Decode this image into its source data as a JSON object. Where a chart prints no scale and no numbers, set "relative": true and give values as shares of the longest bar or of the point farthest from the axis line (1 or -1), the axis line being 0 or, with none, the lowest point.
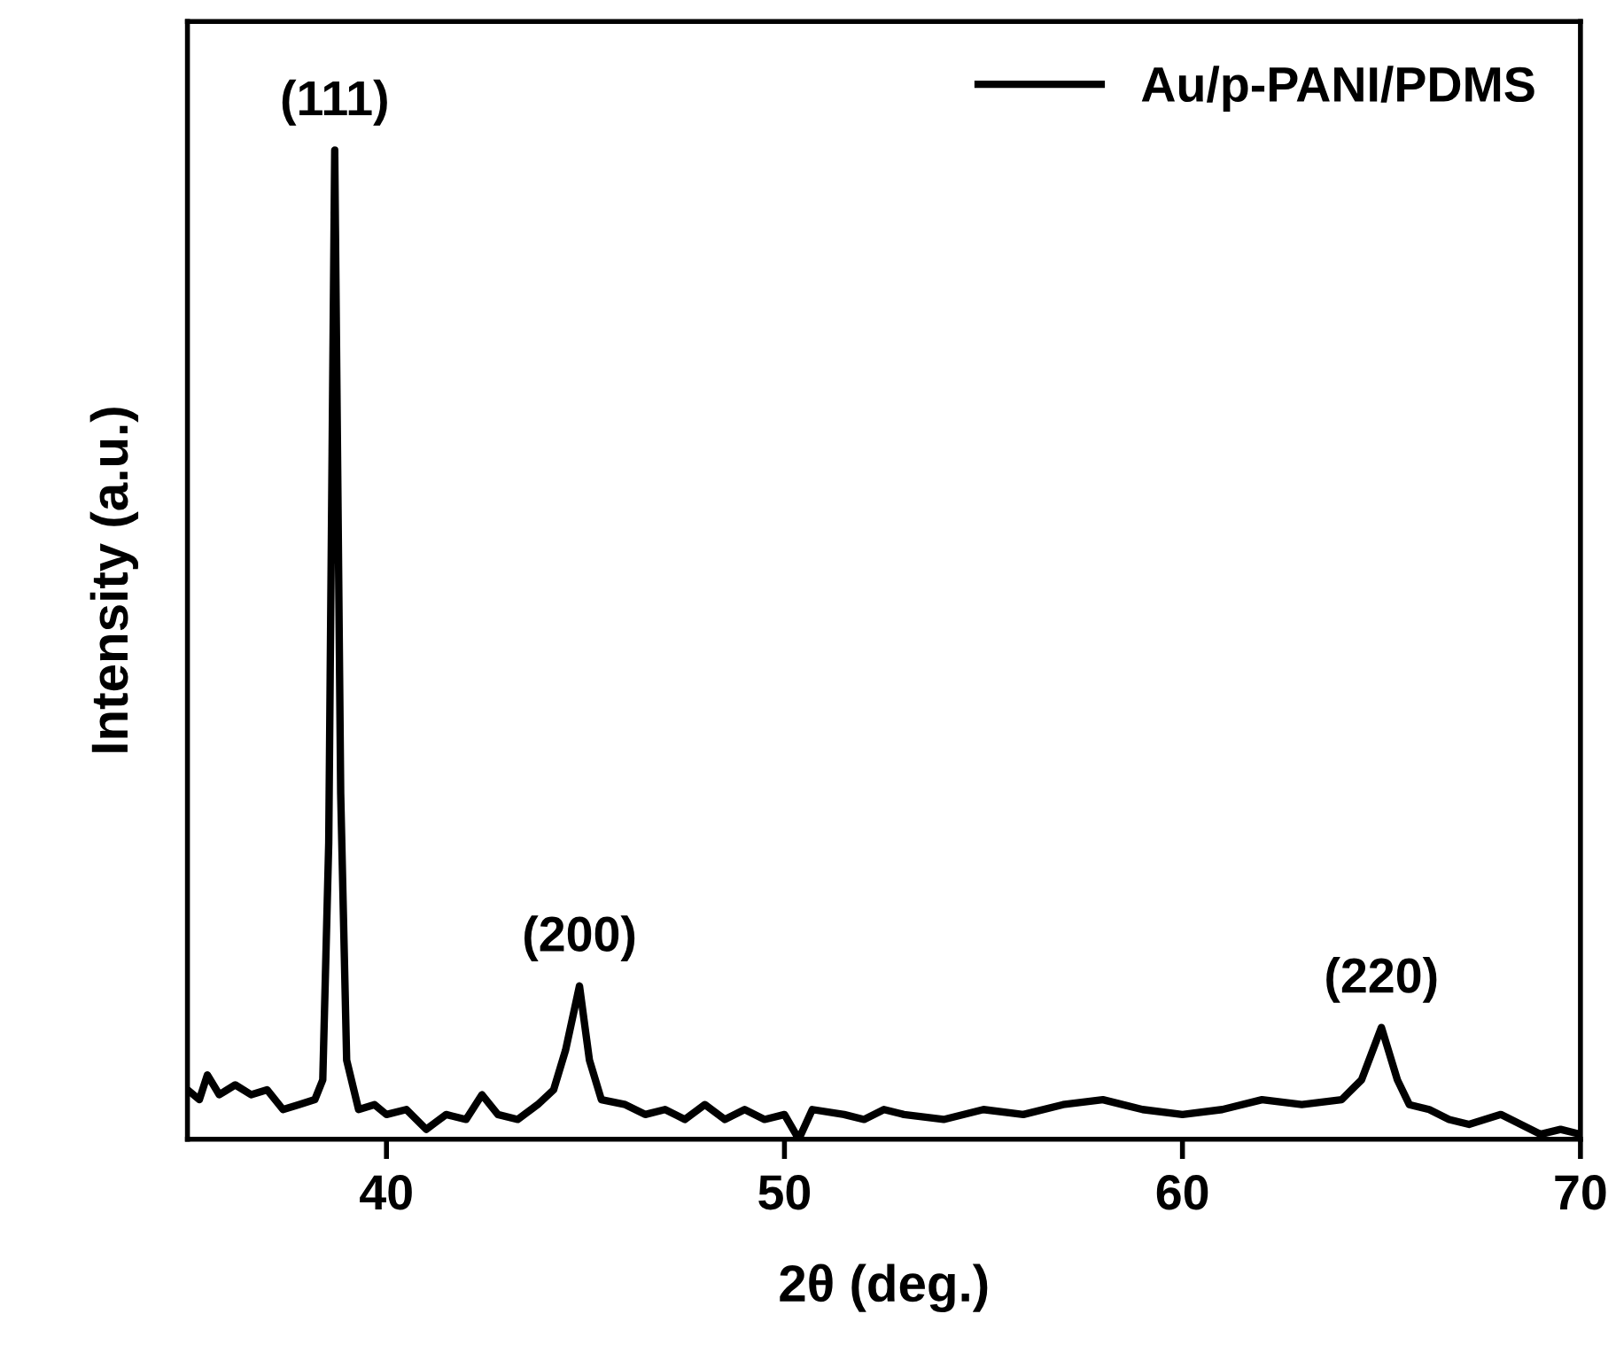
{
  "chart_data": {
    "type": "line",
    "relative": true,
    "xlabel": "2θ (deg.)",
    "ylabel": "Intensity (a.u.)",
    "xlim": [
      35,
      70
    ],
    "xticks": [
      40,
      50,
      60,
      70
    ],
    "legend": "top right",
    "grid": false,
    "marker": "none",
    "line_style": "solid",
    "annotations": [
      {
        "text": "(111)",
        "x": 38.7,
        "y": 1.0
      },
      {
        "text": "(200)",
        "x": 44.85,
        "y": 0.155
      },
      {
        "text": "(220)",
        "x": 65.0,
        "y": 0.113
      }
    ],
    "series": [
      {
        "name": "Au/p-PANI/PDMS",
        "color": "#000000",
        "x": [
          35.0,
          35.3,
          35.5,
          35.8,
          36.2,
          36.6,
          37.0,
          37.4,
          37.8,
          38.2,
          38.4,
          38.55,
          38.7,
          38.85,
          39.0,
          39.3,
          39.7,
          40.0,
          40.5,
          41.0,
          41.5,
          42.0,
          42.4,
          42.8,
          43.3,
          43.8,
          44.2,
          44.5,
          44.85,
          45.1,
          45.4,
          46.0,
          46.5,
          47.0,
          47.5,
          48.0,
          48.5,
          49.0,
          49.5,
          50.0,
          50.36,
          50.7,
          51.5,
          52.0,
          52.5,
          53.0,
          54.0,
          55.0,
          56.0,
          57.0,
          58.0,
          59.0,
          60.0,
          61.0,
          62.0,
          63.0,
          64.0,
          64.5,
          65.0,
          65.4,
          65.7,
          66.2,
          66.7,
          67.2,
          68.0,
          68.5,
          69.0,
          69.5,
          70.0
        ],
        "values": [
          0.05,
          0.04,
          0.065,
          0.045,
          0.055,
          0.045,
          0.05,
          0.03,
          0.035,
          0.04,
          0.06,
          0.3,
          1.0,
          0.35,
          0.08,
          0.03,
          0.035,
          0.025,
          0.03,
          0.01,
          0.025,
          0.02,
          0.045,
          0.025,
          0.02,
          0.035,
          0.05,
          0.09,
          0.155,
          0.08,
          0.04,
          0.035,
          0.025,
          0.03,
          0.02,
          0.035,
          0.02,
          0.03,
          0.02,
          0.025,
          0.0,
          0.03,
          0.025,
          0.02,
          0.03,
          0.025,
          0.02,
          0.03,
          0.025,
          0.035,
          0.04,
          0.03,
          0.025,
          0.03,
          0.04,
          0.035,
          0.04,
          0.06,
          0.113,
          0.06,
          0.035,
          0.03,
          0.02,
          0.015,
          0.025,
          0.015,
          0.005,
          0.01,
          0.005
        ]
      }
    ]
  }
}
